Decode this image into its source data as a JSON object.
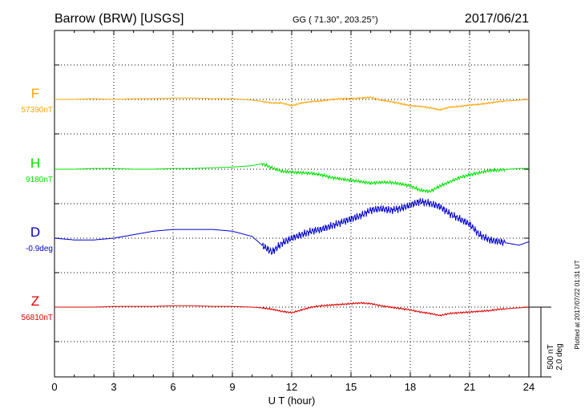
{
  "chart_data": {
    "type": "line",
    "title_left": "Barrow (BRW)  [USGS]",
    "title_center": "GG ( 71.30°, 203.25°)",
    "title_right": "2017/06/21",
    "xlabel": "U T (hour)",
    "xlim": [
      0,
      24
    ],
    "xticks": [
      "0",
      "3",
      "6",
      "9",
      "12",
      "15",
      "18",
      "21",
      "24"
    ],
    "plotted_note": "Plotted at 2017/07/22 01:31  UT",
    "scale_labels": [
      "500 nT",
      "2.0 deg"
    ],
    "grid": true,
    "colors": {
      "F": "#ffa500",
      "H": "#00e000",
      "D": "#0000cc",
      "Z": "#dd0000",
      "grid": "#000000"
    },
    "series": [
      {
        "name": "F",
        "baseline_label": "57390nT",
        "x": [
          0,
          1,
          2,
          3,
          4,
          5,
          6,
          7,
          8,
          9,
          10,
          10.5,
          11,
          11.5,
          12,
          12.5,
          13,
          13.5,
          14,
          14.5,
          15,
          15.5,
          16,
          16.5,
          17,
          17.5,
          18,
          18.5,
          19,
          19.5,
          20,
          20.5,
          21,
          21.5,
          22,
          22.5,
          23,
          23.5,
          24
        ],
        "y": [
          0,
          0,
          5,
          0,
          5,
          5,
          10,
          10,
          5,
          5,
          -5,
          -15,
          -25,
          -25,
          -45,
          -25,
          -15,
          -10,
          0,
          5,
          5,
          10,
          15,
          -5,
          -15,
          -30,
          -45,
          -50,
          -60,
          -75,
          -55,
          -50,
          -40,
          -35,
          -25,
          -15,
          -10,
          -5,
          0
        ]
      },
      {
        "name": "H",
        "baseline_label": "9180nT",
        "x": [
          0,
          1,
          2,
          3,
          4,
          5,
          6,
          7,
          8,
          9,
          10,
          10.5,
          11,
          11.5,
          12,
          12.5,
          13,
          13.5,
          14,
          14.5,
          15,
          15.5,
          16,
          16.5,
          17,
          17.5,
          18,
          18.5,
          19,
          19.5,
          20,
          20.5,
          21,
          21.5,
          22,
          22.5,
          23,
          23.5,
          24
        ],
        "y": [
          0,
          0,
          5,
          5,
          0,
          0,
          5,
          5,
          10,
          15,
          25,
          40,
          10,
          -15,
          -20,
          -25,
          -30,
          -40,
          -60,
          -70,
          -80,
          -90,
          -100,
          -95,
          -95,
          -105,
          -120,
          -150,
          -160,
          -120,
          -90,
          -60,
          -40,
          -25,
          -10,
          -5,
          0,
          5,
          5
        ]
      },
      {
        "name": "D",
        "baseline_label": "-0.9deg",
        "x": [
          0,
          1,
          2,
          3,
          4,
          5,
          6,
          7,
          8,
          9,
          10,
          10.5,
          11,
          11.5,
          12,
          12.5,
          13,
          13.5,
          14,
          14.5,
          15,
          15.5,
          16,
          16.5,
          17,
          17.5,
          18,
          18.5,
          19,
          19.5,
          20,
          20.5,
          21,
          21.5,
          22,
          22.5,
          23,
          23.5,
          24
        ],
        "y": [
          0,
          -0.05,
          -0.05,
          0,
          0.1,
          0.2,
          0.25,
          0.25,
          0.25,
          0.2,
          0.05,
          -0.2,
          -0.4,
          -0.15,
          0,
          0.1,
          0.2,
          0.25,
          0.35,
          0.45,
          0.55,
          0.65,
          0.8,
          0.85,
          0.8,
          0.85,
          0.95,
          1.05,
          1.0,
          0.9,
          0.7,
          0.55,
          0.4,
          0.1,
          -0.05,
          -0.1,
          -0.15,
          -0.2,
          -0.1
        ]
      },
      {
        "name": "Z",
        "baseline_label": "56810nT",
        "x": [
          0,
          1,
          2,
          3,
          4,
          5,
          6,
          7,
          8,
          9,
          10,
          10.5,
          11,
          11.5,
          12,
          12.5,
          13,
          13.5,
          14,
          14.5,
          15,
          15.5,
          16,
          16.5,
          17,
          17.5,
          18,
          18.5,
          19,
          19.5,
          20,
          20.5,
          21,
          21.5,
          22,
          22.5,
          23,
          23.5,
          24
        ],
        "y": [
          0,
          0,
          0,
          5,
          5,
          5,
          10,
          10,
          5,
          5,
          0,
          -5,
          -15,
          -30,
          -40,
          -20,
          0,
          10,
          15,
          20,
          25,
          30,
          25,
          10,
          0,
          -10,
          -20,
          -35,
          -45,
          -60,
          -45,
          -40,
          -35,
          -30,
          -25,
          -15,
          -10,
          -5,
          0
        ]
      }
    ]
  }
}
